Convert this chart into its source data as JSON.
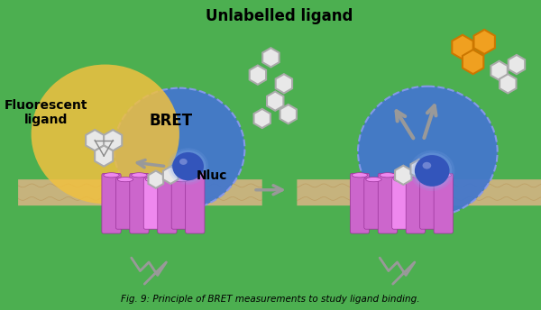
{
  "bg_color": "#4CAF50",
  "title": "Fig. 9: Principle of BRET measurements to study ligand binding.",
  "membrane_color_top": "#D4B483",
  "membrane_color_mid": "#C8A870",
  "membrane_wavy_color": "#C8A870",
  "receptor_color": "#CC66CC",
  "receptor_highlight": "#EE88EE",
  "receptor_shadow": "#AA44AA",
  "blue_circle_color": "#4477CC",
  "blue_glow_color": "#88AAEE",
  "nluc_color": "#3355BB",
  "yellow_circle_color": "#F0C040",
  "yellow_circle_alpha": 0.85,
  "hexagon_color_white": "#E8E8E8",
  "hexagon_edge_white": "#AAAAAA",
  "hexagon_color_gold": "#F0A020",
  "hexagon_edge_gold": "#CC7700",
  "arrow_color": "#999999",
  "text_bret": "BRET",
  "text_nluc": "Nluc",
  "text_fluorescent": "Fluorescent\nligand",
  "text_unlabelled": "Unlabelled ligand",
  "text_color_main": "#000000",
  "text_color_bret": "#000000"
}
